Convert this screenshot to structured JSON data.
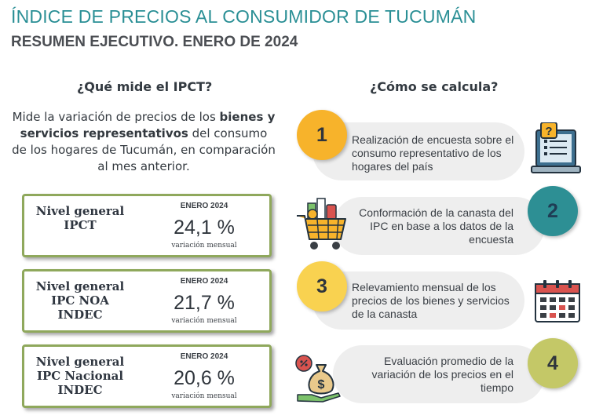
{
  "header": {
    "title": "ÍNDICE DE PRECIOS AL CONSUMIDOR DE TUCUMÁN",
    "subtitle": "RESUMEN EJECUTIVO. ENERO DE 2024"
  },
  "left": {
    "heading": "¿Qué mide el IPCT?",
    "intro_pre": "Mide la variación de precios de los ",
    "intro_bold": "bienes y servicios representativos",
    "intro_post": " del consumo de los hogares de Tucumán, en comparación al mes anterior.",
    "cards": [
      {
        "label": "Nivel general IPCT",
        "period": "ENERO 2024",
        "value": "24,1 %",
        "note": "variación mensual"
      },
      {
        "label": "Nivel general IPC NOA INDEC",
        "period": "ENERO 2024",
        "value": "21,7 %",
        "note": "variación mensual"
      },
      {
        "label": "Nivel general IPC Nacional INDEC",
        "period": "ENERO 2024",
        "value": "20,6 %",
        "note": "variación mensual"
      }
    ]
  },
  "right": {
    "heading": "¿Cómo se calcula?",
    "steps": [
      {
        "number": "1",
        "text": "Realización de encuesta sobre el consumo representativo de los hogares del país",
        "icon": "survey-icon",
        "color": "#f7b32b"
      },
      {
        "number": "2",
        "text": "Conformación de la canasta del IPC en base a los datos de la encuesta",
        "icon": "shopping-cart-icon",
        "color": "#2d8f94"
      },
      {
        "number": "3",
        "text": "Relevamiento mensual de los precios de los bienes y servicios de la canasta",
        "icon": "calendar-icon",
        "color": "#f9d250"
      },
      {
        "number": "4",
        "text": "Evaluación promedio de la variación de los precios en el tiempo",
        "icon": "money-bag-icon",
        "color": "#c4c867"
      }
    ]
  },
  "colors": {
    "title": "#2a8f95",
    "card_border": "#8fa85c",
    "pill_bg": "#eeeeee"
  }
}
